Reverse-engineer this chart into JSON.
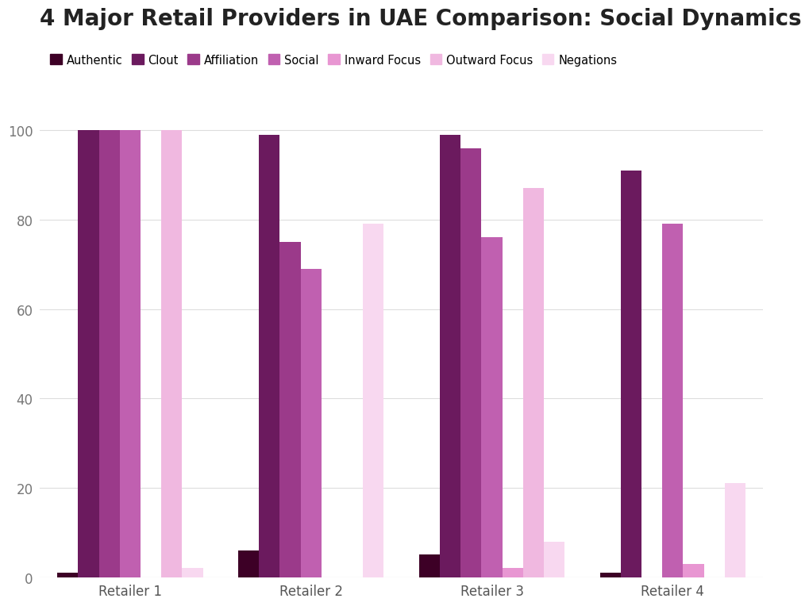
{
  "title": "4 Major Retail Providers in UAE Comparison: Social Dynamics",
  "categories": [
    "Retailer 1",
    "Retailer 2",
    "Retailer 3",
    "Retailer 4"
  ],
  "series": [
    {
      "label": "Authentic",
      "color": "#3D0026",
      "values": [
        1,
        6,
        5,
        1
      ]
    },
    {
      "label": "Clout",
      "color": "#6B1A5E",
      "values": [
        100,
        99,
        99,
        91
      ]
    },
    {
      "label": "Affiliation",
      "color": "#9B3A8A",
      "values": [
        100,
        75,
        96,
        0
      ]
    },
    {
      "label": "Social",
      "color": "#C060B0",
      "values": [
        100,
        69,
        76,
        79
      ]
    },
    {
      "label": "Inward Focus",
      "color": "#E896D2",
      "values": [
        0,
        0,
        2,
        3
      ]
    },
    {
      "label": "Outward Focus",
      "color": "#F0B8E0",
      "values": [
        100,
        0,
        87,
        0
      ]
    },
    {
      "label": "Negations",
      "color": "#F8D8F0",
      "values": [
        2,
        79,
        8,
        21
      ]
    }
  ],
  "ylim": [
    0,
    107
  ],
  "yticks": [
    0,
    20,
    40,
    60,
    80,
    100
  ],
  "background_color": "#FFFFFF",
  "grid_color": "#DDDDDD",
  "title_fontsize": 20,
  "legend_fontsize": 10.5,
  "tick_fontsize": 12
}
